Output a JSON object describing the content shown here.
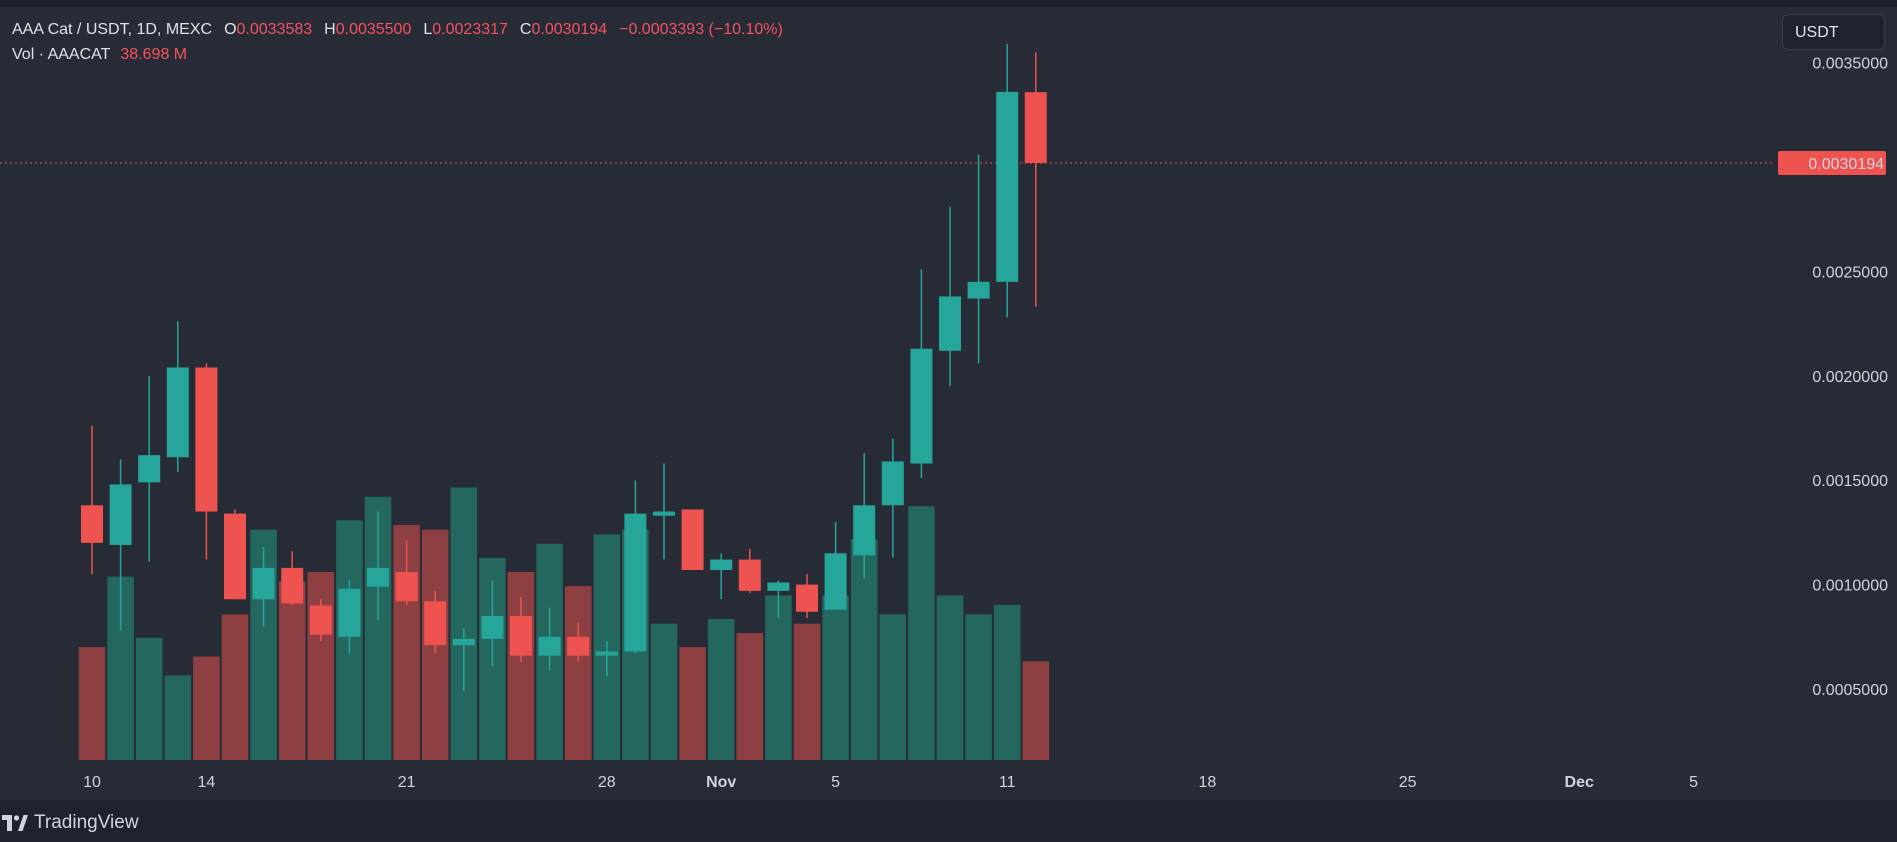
{
  "header": {
    "symbol": "AAA Cat / USDT, 1D, MEXC",
    "o_label": "O",
    "o_value": "0.0033583",
    "h_label": "H",
    "h_value": "0.0035500",
    "l_label": "L",
    "l_value": "0.0023317",
    "c_label": "C",
    "c_value": "0.0030194",
    "change": "−0.0003393 (−10.10%)",
    "vol_label": "Vol · AAACAT",
    "vol_value": "38.698 M"
  },
  "unit_button": "USDT",
  "price_label": "0.0030194",
  "footer": {
    "brand": "TradingView"
  },
  "colors": {
    "up": "#26a69a",
    "down": "#ef5350",
    "vol_up": "#24675f",
    "vol_down": "#8e3f41",
    "bg": "#272b35"
  },
  "chart_data": {
    "type": "candlestick",
    "yaxis": {
      "ticks": [
        "0.0005000",
        "0.0010000",
        "0.0015000",
        "0.0020000",
        "0.0025000",
        "0.0030000",
        "0.0035000"
      ],
      "ylim": [
        0.00016,
        0.0038
      ]
    },
    "xaxis": {
      "ticks": [
        {
          "label": "10",
          "day": 0
        },
        {
          "label": "14",
          "day": 4
        },
        {
          "label": "21",
          "day": 11
        },
        {
          "label": "28",
          "day": 18
        },
        {
          "label": "Nov",
          "day": 22,
          "bold": true
        },
        {
          "label": "5",
          "day": 26
        },
        {
          "label": "11",
          "day": 32
        },
        {
          "label": "18",
          "day": 39
        },
        {
          "label": "25",
          "day": 46
        },
        {
          "label": "Dec",
          "day": 52,
          "bold": true
        },
        {
          "label": "5",
          "day": 56
        }
      ]
    },
    "last_close": 0.0030194,
    "candles": [
      {
        "day": 0,
        "o": 0.00138,
        "h": 0.00176,
        "l": 0.00105,
        "c": 0.0012,
        "vol": 0.24
      },
      {
        "day": 1,
        "o": 0.00119,
        "h": 0.0016,
        "l": 0.00078,
        "c": 0.00148,
        "vol": 0.39
      },
      {
        "day": 2,
        "o": 0.00149,
        "h": 0.002,
        "l": 0.00111,
        "c": 0.00162,
        "vol": 0.26
      },
      {
        "day": 3,
        "o": 0.00161,
        "h": 0.00226,
        "l": 0.00154,
        "c": 0.00204,
        "vol": 0.18
      },
      {
        "day": 4,
        "o": 0.00204,
        "h": 0.00206,
        "l": 0.00112,
        "c": 0.00135,
        "vol": 0.22
      },
      {
        "day": 5,
        "o": 0.00134,
        "h": 0.00136,
        "l": 0.00093,
        "c": 0.00093,
        "vol": 0.31
      },
      {
        "day": 6,
        "o": 0.00093,
        "h": 0.00118,
        "l": 0.0008,
        "c": 0.00108,
        "vol": 0.49
      },
      {
        "day": 7,
        "o": 0.00108,
        "h": 0.00116,
        "l": 0.0009,
        "c": 0.00091,
        "vol": 0.38
      },
      {
        "day": 8,
        "o": 0.0009,
        "h": 0.00093,
        "l": 0.00073,
        "c": 0.00076,
        "vol": 0.4
      },
      {
        "day": 9,
        "o": 0.00075,
        "h": 0.00102,
        "l": 0.00067,
        "c": 0.00098,
        "vol": 0.51
      },
      {
        "day": 10,
        "o": 0.00099,
        "h": 0.00135,
        "l": 0.00083,
        "c": 0.00108,
        "vol": 0.56
      },
      {
        "day": 11,
        "o": 0.00106,
        "h": 0.00121,
        "l": 0.0009,
        "c": 0.00092,
        "vol": 0.5
      },
      {
        "day": 12,
        "o": 0.00092,
        "h": 0.00097,
        "l": 0.00067,
        "c": 0.00071,
        "vol": 0.49
      },
      {
        "day": 13,
        "o": 0.00071,
        "h": 0.00079,
        "l": 0.00049,
        "c": 0.00074,
        "vol": 0.58
      },
      {
        "day": 14,
        "o": 0.00074,
        "h": 0.00102,
        "l": 0.00061,
        "c": 0.00085,
        "vol": 0.43
      },
      {
        "day": 15,
        "o": 0.00085,
        "h": 0.00094,
        "l": 0.00063,
        "c": 0.00066,
        "vol": 0.4
      },
      {
        "day": 16,
        "o": 0.00066,
        "h": 0.00089,
        "l": 0.00059,
        "c": 0.00075,
        "vol": 0.46
      },
      {
        "day": 17,
        "o": 0.00075,
        "h": 0.00082,
        "l": 0.00063,
        "c": 0.00066,
        "vol": 0.37
      },
      {
        "day": 18,
        "o": 0.00066,
        "h": 0.00073,
        "l": 0.00056,
        "c": 0.00068,
        "vol": 0.48
      },
      {
        "day": 19,
        "o": 0.00068,
        "h": 0.0015,
        "l": 0.00067,
        "c": 0.00134,
        "vol": 0.49
      },
      {
        "day": 20,
        "o": 0.00133,
        "h": 0.00158,
        "l": 0.00112,
        "c": 0.00135,
        "vol": 0.29
      },
      {
        "day": 21,
        "o": 0.00136,
        "h": 0.00136,
        "l": 0.00107,
        "c": 0.00107,
        "vol": 0.24
      },
      {
        "day": 22,
        "o": 0.00107,
        "h": 0.00115,
        "l": 0.00093,
        "c": 0.00112,
        "vol": 0.3
      },
      {
        "day": 23,
        "o": 0.00112,
        "h": 0.00117,
        "l": 0.00096,
        "c": 0.00097,
        "vol": 0.27
      },
      {
        "day": 24,
        "o": 0.00097,
        "h": 0.00102,
        "l": 0.00084,
        "c": 0.00101,
        "vol": 0.35
      },
      {
        "day": 25,
        "o": 0.001,
        "h": 0.00105,
        "l": 0.00084,
        "c": 0.00087,
        "vol": 0.29
      },
      {
        "day": 26,
        "o": 0.00088,
        "h": 0.0013,
        "l": 0.00089,
        "c": 0.00115,
        "vol": 0.35
      },
      {
        "day": 27,
        "o": 0.00114,
        "h": 0.00163,
        "l": 0.00103,
        "c": 0.00138,
        "vol": 0.47
      },
      {
        "day": 28,
        "o": 0.00138,
        "h": 0.0017,
        "l": 0.00113,
        "c": 0.00159,
        "vol": 0.31
      },
      {
        "day": 29,
        "o": 0.00158,
        "h": 0.00251,
        "l": 0.00151,
        "c": 0.00213,
        "vol": 0.54
      },
      {
        "day": 30,
        "o": 0.00212,
        "h": 0.00281,
        "l": 0.00195,
        "c": 0.00238,
        "vol": 0.35
      },
      {
        "day": 31,
        "o": 0.00237,
        "h": 0.00306,
        "l": 0.00206,
        "c": 0.00245,
        "vol": 0.31
      },
      {
        "day": 32,
        "o": 0.00245,
        "h": 0.00359,
        "l": 0.00228,
        "c": 0.00336,
        "vol": 0.33
      },
      {
        "day": 33,
        "o": 0.0033583,
        "h": 0.00355,
        "l": 0.0023317,
        "c": 0.0030194,
        "vol": 0.21
      }
    ]
  }
}
